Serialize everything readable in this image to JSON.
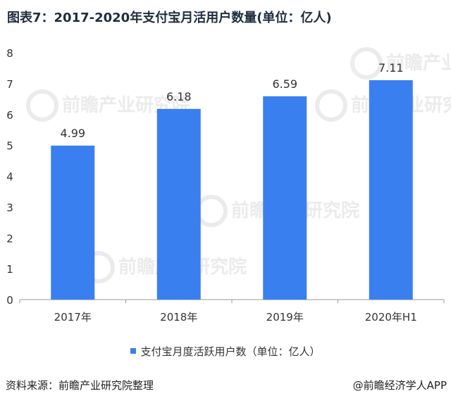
{
  "title": "图表7：2017-2020年支付宝月活用户数量(单位：亿人)",
  "legend_label": "支付宝月度活跃用户数（单位：亿人）",
  "source": "资料来源：前瞻产业研究院整理",
  "credit": "@前瞻经济学人APP",
  "watermark_text": "前瞻产业研究院",
  "colors": {
    "bar": "#3a7ff0",
    "axis": "#999999",
    "text": "#333333"
  },
  "chart_data": {
    "type": "bar",
    "categories": [
      "2017年",
      "2018年",
      "2019年",
      "2020年H1"
    ],
    "values": [
      4.99,
      6.18,
      6.59,
      7.11
    ],
    "data_labels": [
      "4.99",
      "6.18",
      "6.59",
      "7.11"
    ],
    "ylim": [
      0,
      8
    ],
    "yticks": [
      0,
      1,
      2,
      3,
      4,
      5,
      6,
      7,
      8
    ],
    "grid": false,
    "legend_position": "bottom"
  }
}
